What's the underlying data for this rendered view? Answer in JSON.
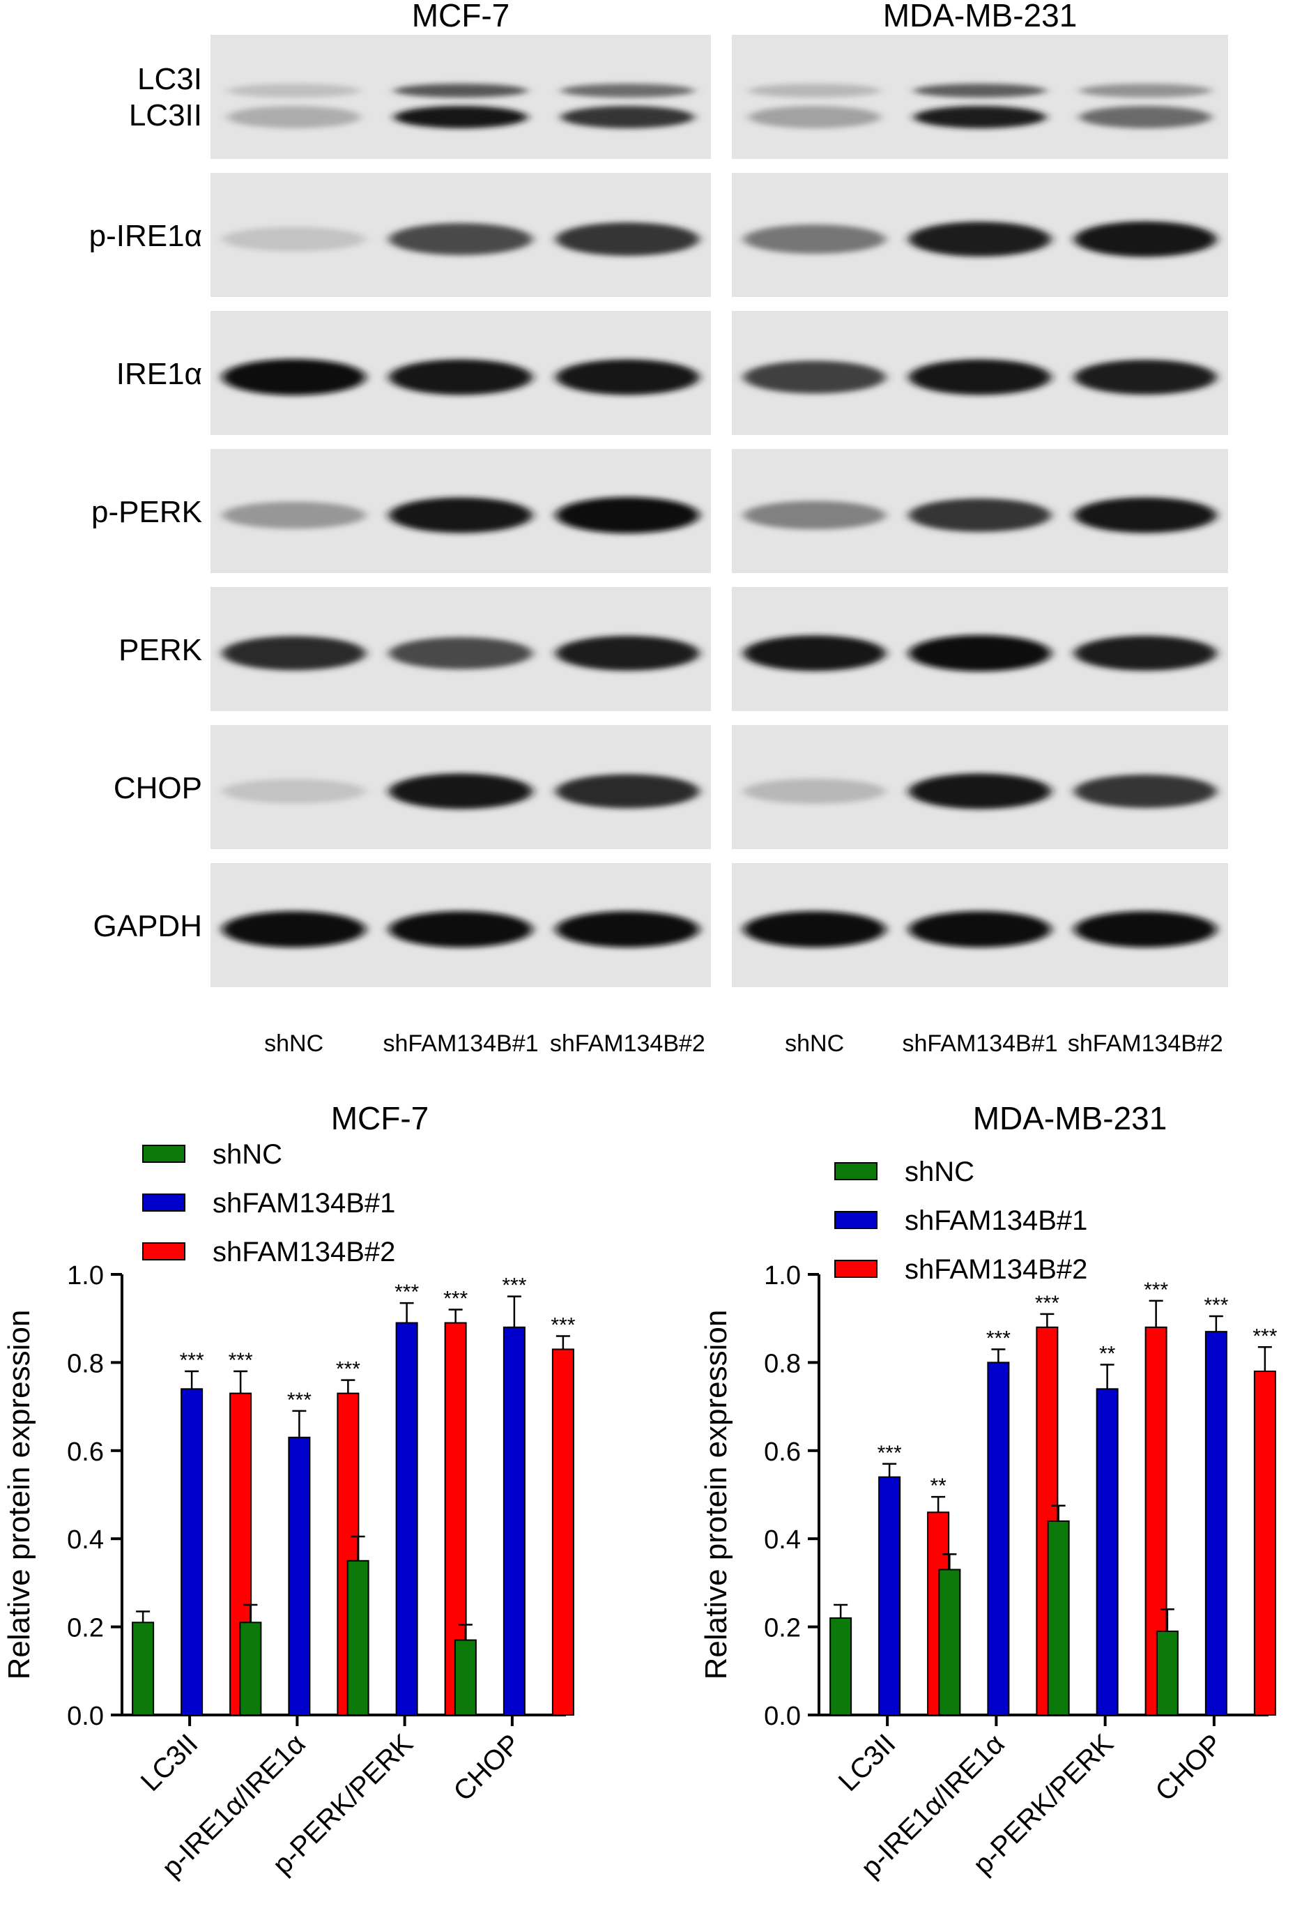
{
  "blots": {
    "cell_lines": [
      "MCF-7",
      "MDA-MB-231"
    ],
    "rows": [
      "LC3I\nLC3II",
      "p-IRE1α",
      "IRE1α",
      "p-PERK",
      "PERK",
      "CHOP",
      "GAPDH"
    ],
    "lanes": [
      "shNC",
      "shFAM134B#1",
      "shFAM134B#2"
    ],
    "band_intensity": {
      "MCF-7": [
        [
          0.25,
          0.95,
          0.8
        ],
        [
          0.15,
          0.7,
          0.8
        ],
        [
          1.0,
          0.95,
          0.95
        ],
        [
          0.35,
          0.95,
          1.0
        ],
        [
          0.85,
          0.7,
          0.9
        ],
        [
          0.15,
          0.95,
          0.85
        ],
        [
          1.0,
          1.0,
          1.0
        ]
      ],
      "MDA-MB-231": [
        [
          0.3,
          0.9,
          0.55
        ],
        [
          0.5,
          0.9,
          0.95
        ],
        [
          0.75,
          0.95,
          0.9
        ],
        [
          0.45,
          0.8,
          0.95
        ],
        [
          0.95,
          1.0,
          0.9
        ],
        [
          0.2,
          0.95,
          0.8
        ],
        [
          1.0,
          1.0,
          1.0
        ]
      ]
    }
  },
  "colors": {
    "shNC": "#0b7a0b",
    "shFAM134B#1": "#0000cc",
    "shFAM134B#2": "#ff0000"
  },
  "chart_data": [
    {
      "type": "bar",
      "title": "MCF-7",
      "ylabel": "Relative protein expression",
      "ylim": [
        0,
        1.0
      ],
      "yticks": [
        "0.0",
        "0.2",
        "0.4",
        "0.6",
        "0.8",
        "1.0"
      ],
      "categories": [
        "LC3II",
        "p-IRE1α/IRE1α",
        "p-PERK/PERK",
        "CHOP"
      ],
      "series": [
        {
          "name": "shNC",
          "values": [
            0.21,
            0.21,
            0.35,
            0.17
          ],
          "errors": [
            0.025,
            0.04,
            0.055,
            0.035
          ],
          "stars": [
            "",
            "",
            "",
            ""
          ]
        },
        {
          "name": "shFAM134B#1",
          "values": [
            0.74,
            0.63,
            0.89,
            0.88
          ],
          "errors": [
            0.04,
            0.06,
            0.045,
            0.07
          ],
          "stars": [
            "***",
            "***",
            "***",
            "***"
          ]
        },
        {
          "name": "shFAM134B#2",
          "values": [
            0.73,
            0.73,
            0.89,
            0.83
          ],
          "errors": [
            0.05,
            0.03,
            0.03,
            0.03
          ],
          "stars": [
            "***",
            "***",
            "***",
            "***"
          ]
        }
      ]
    },
    {
      "type": "bar",
      "title": "MDA-MB-231",
      "ylabel": "Relative protein expression",
      "ylim": [
        0,
        1.0
      ],
      "yticks": [
        "0.0",
        "0.2",
        "0.4",
        "0.6",
        "0.8",
        "1.0"
      ],
      "categories": [
        "LC3II",
        "p-IRE1α/IRE1α",
        "p-PERK/PERK",
        "CHOP"
      ],
      "series": [
        {
          "name": "shNC",
          "values": [
            0.22,
            0.33,
            0.44,
            0.19
          ],
          "errors": [
            0.03,
            0.035,
            0.035,
            0.05
          ],
          "stars": [
            "",
            "",
            "",
            ""
          ]
        },
        {
          "name": "shFAM134B#1",
          "values": [
            0.54,
            0.8,
            0.74,
            0.87
          ],
          "errors": [
            0.03,
            0.03,
            0.055,
            0.035
          ],
          "stars": [
            "***",
            "***",
            "**",
            "***"
          ]
        },
        {
          "name": "shFAM134B#2",
          "values": [
            0.46,
            0.88,
            0.88,
            0.78
          ],
          "errors": [
            0.035,
            0.03,
            0.06,
            0.055
          ],
          "stars": [
            "**",
            "***",
            "***",
            "***"
          ]
        }
      ]
    }
  ]
}
